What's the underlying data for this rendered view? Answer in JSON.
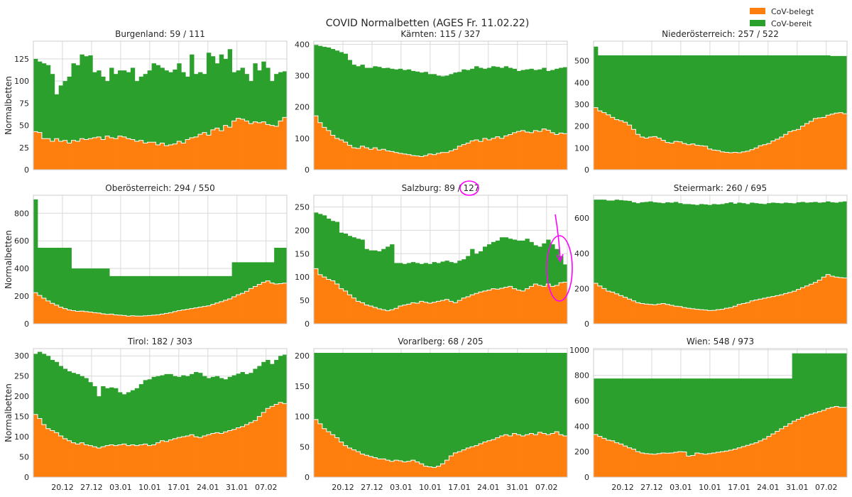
{
  "title": "COVID Normalbetten (AGES Fr. 11.02.22)",
  "legend": {
    "placement": "top-right",
    "items": [
      {
        "label": "CoV-belegt",
        "color": "#ff7f0e"
      },
      {
        "label": "CoV-bereit",
        "color": "#2ca02c"
      }
    ]
  },
  "chart_data": {
    "type": "area",
    "ylabel": "Normalbetten",
    "x_ticks": [
      "20.12",
      "27.12",
      "03.01",
      "10.01",
      "17.01",
      "24.01",
      "31.01",
      "07.02"
    ],
    "x_range": [
      "13.12",
      "11.02"
    ],
    "grid": true,
    "annotations": [
      "127 circled in Salzburg title",
      "arrow and ellipse around latest Salzburg values"
    ],
    "series_names": [
      "CoV-belegt",
      "CoV-bereit"
    ],
    "panels": [
      {
        "title": "Burgenland: 59 / 111",
        "ylim": [
          0,
          145
        ],
        "yticks": [
          0,
          25,
          50,
          75,
          100,
          125
        ],
        "belegt": [
          43,
          42,
          35,
          35,
          32,
          35,
          32,
          33,
          30,
          33,
          32,
          35,
          34,
          35,
          36,
          37,
          34,
          38,
          36,
          35,
          38,
          37,
          35,
          34,
          32,
          33,
          30,
          31,
          31,
          28,
          30,
          27,
          28,
          29,
          32,
          30,
          34,
          36,
          37,
          40,
          42,
          39,
          45,
          47,
          44,
          50,
          48,
          55,
          58,
          57,
          55,
          52,
          54,
          53,
          54,
          51,
          50,
          49,
          55,
          59
        ],
        "bereit": [
          125,
          122,
          120,
          118,
          108,
          85,
          95,
          100,
          105,
          120,
          118,
          130,
          128,
          129,
          110,
          112,
          105,
          100,
          115,
          108,
          112,
          112,
          110,
          115,
          100,
          105,
          108,
          112,
          120,
          118,
          115,
          112,
          110,
          113,
          120,
          110,
          105,
          130,
          108,
          110,
          108,
          132,
          128,
          120,
          130,
          125,
          136,
          110,
          112,
          115,
          108,
          100,
          120,
          112,
          122,
          115,
          100,
          108,
          110,
          111
        ]
      },
      {
        "title": "Kärnten: 115 / 327",
        "ylim": [
          0,
          410
        ],
        "yticks": [
          0,
          100,
          200,
          300,
          400
        ],
        "belegt": [
          172,
          150,
          135,
          125,
          110,
          100,
          95,
          88,
          78,
          70,
          68,
          75,
          70,
          65,
          70,
          63,
          65,
          60,
          58,
          55,
          52,
          50,
          48,
          45,
          44,
          42,
          45,
          50,
          48,
          52,
          55,
          55,
          60,
          65,
          75,
          80,
          85,
          92,
          95,
          90,
          100,
          95,
          100,
          105,
          100,
          108,
          112,
          118,
          122,
          125,
          120,
          118,
          125,
          122,
          130,
          126,
          118,
          112,
          117,
          115
        ],
        "bereit": [
          398,
          395,
          392,
          390,
          385,
          380,
          375,
          370,
          350,
          335,
          330,
          335,
          325,
          325,
          330,
          328,
          324,
          325,
          322,
          320,
          322,
          318,
          320,
          315,
          313,
          310,
          312,
          305,
          305,
          300,
          298,
          300,
          305,
          310,
          312,
          320,
          318,
          322,
          330,
          325,
          322,
          325,
          330,
          328,
          325,
          330,
          325,
          322,
          315,
          318,
          320,
          322,
          318,
          320,
          325,
          315,
          318,
          322,
          325,
          327
        ]
      },
      {
        "title": "Niederösterreich: 257 / 522",
        "ylim": [
          0,
          590
        ],
        "yticks": [
          0,
          100,
          200,
          300,
          400,
          500
        ],
        "belegt": [
          285,
          270,
          262,
          252,
          240,
          230,
          225,
          218,
          205,
          185,
          162,
          150,
          145,
          150,
          152,
          145,
          135,
          125,
          122,
          130,
          128,
          120,
          115,
          118,
          112,
          110,
          108,
          95,
          90,
          88,
          82,
          80,
          78,
          80,
          78,
          82,
          85,
          92,
          100,
          110,
          115,
          120,
          132,
          140,
          150,
          162,
          175,
          180,
          185,
          200,
          212,
          222,
          235,
          238,
          240,
          250,
          255,
          260,
          262,
          257
        ],
        "bereit": [
          565,
          525,
          525,
          525,
          525,
          525,
          525,
          525,
          525,
          525,
          525,
          525,
          525,
          525,
          525,
          525,
          525,
          525,
          525,
          525,
          525,
          525,
          525,
          525,
          525,
          525,
          525,
          525,
          525,
          525,
          525,
          525,
          525,
          525,
          525,
          525,
          525,
          525,
          525,
          525,
          525,
          525,
          525,
          525,
          525,
          525,
          525,
          525,
          525,
          525,
          525,
          525,
          525,
          525,
          525,
          525,
          522,
          522,
          522,
          522
        ]
      },
      {
        "title": "Oberösterreich: 294 / 550",
        "ylim": [
          0,
          930
        ],
        "yticks": [
          0,
          200,
          400,
          600,
          800
        ],
        "belegt": [
          225,
          205,
          185,
          165,
          148,
          135,
          120,
          110,
          100,
          95,
          90,
          92,
          88,
          85,
          80,
          78,
          72,
          68,
          70,
          64,
          62,
          60,
          55,
          58,
          56,
          55,
          58,
          60,
          62,
          65,
          70,
          75,
          80,
          88,
          95,
          100,
          105,
          110,
          115,
          120,
          125,
          130,
          140,
          150,
          160,
          170,
          180,
          195,
          210,
          220,
          235,
          255,
          270,
          285,
          300,
          310,
          295,
          288,
          290,
          294
        ],
        "bereit": [
          900,
          550,
          550,
          550,
          550,
          550,
          550,
          550,
          550,
          400,
          400,
          400,
          400,
          400,
          400,
          400,
          400,
          400,
          345,
          345,
          345,
          345,
          345,
          345,
          345,
          345,
          345,
          345,
          345,
          345,
          345,
          345,
          345,
          345,
          345,
          345,
          345,
          345,
          345,
          345,
          345,
          345,
          345,
          345,
          345,
          345,
          345,
          445,
          445,
          445,
          445,
          445,
          445,
          445,
          445,
          445,
          445,
          550,
          550,
          550
        ]
      },
      {
        "title": "Salzburg: 89 / 127",
        "ylim": [
          0,
          275
        ],
        "yticks": [
          0,
          50,
          100,
          150,
          200,
          250
        ],
        "belegt": [
          118,
          105,
          100,
          95,
          92,
          85,
          75,
          70,
          62,
          55,
          48,
          45,
          40,
          38,
          35,
          32,
          30,
          28,
          30,
          33,
          38,
          40,
          42,
          45,
          44,
          48,
          46,
          44,
          46,
          48,
          50,
          52,
          48,
          45,
          50,
          55,
          58,
          62,
          65,
          68,
          70,
          72,
          75,
          74,
          76,
          78,
          80,
          75,
          72,
          70,
          75,
          80,
          85,
          82,
          80,
          85,
          80,
          82,
          88,
          89
        ],
        "bereit": [
          238,
          235,
          232,
          225,
          220,
          218,
          195,
          193,
          188,
          185,
          182,
          180,
          160,
          157,
          157,
          155,
          160,
          165,
          170,
          130,
          130,
          128,
          130,
          132,
          130,
          128,
          130,
          128,
          132,
          130,
          133,
          135,
          132,
          130,
          135,
          138,
          145,
          160,
          150,
          155,
          165,
          170,
          175,
          178,
          185,
          185,
          182,
          180,
          178,
          178,
          182,
          175,
          168,
          165,
          172,
          180,
          170,
          160,
          145,
          127
        ]
      },
      {
        "title": "Steiermark: 260 / 695",
        "ylim": [
          0,
          730
        ],
        "yticks": [
          0,
          200,
          400,
          600
        ],
        "belegt": [
          230,
          215,
          200,
          185,
          180,
          170,
          160,
          150,
          140,
          130,
          120,
          115,
          112,
          110,
          108,
          112,
          115,
          110,
          105,
          100,
          98,
          92,
          88,
          85,
          82,
          80,
          78,
          75,
          76,
          80,
          82,
          88,
          92,
          100,
          110,
          115,
          120,
          130,
          135,
          140,
          145,
          150,
          155,
          160,
          165,
          172,
          178,
          185,
          195,
          205,
          215,
          225,
          235,
          248,
          265,
          280,
          270,
          265,
          262,
          260
        ],
        "bereit": [
          705,
          705,
          705,
          700,
          700,
          705,
          702,
          700,
          698,
          690,
          685,
          690,
          692,
          695,
          690,
          688,
          685,
          690,
          688,
          692,
          685,
          680,
          680,
          678,
          675,
          680,
          678,
          675,
          680,
          678,
          680,
          685,
          690,
          682,
          688,
          685,
          680,
          688,
          685,
          682,
          680,
          685,
          688,
          686,
          684,
          688,
          686,
          684,
          690,
          692,
          688,
          690,
          692,
          688,
          690,
          695,
          690,
          688,
          692,
          695
        ]
      },
      {
        "title": "Tirol: 182 / 303",
        "ylim": [
          0,
          318
        ],
        "yticks": [
          0,
          50,
          100,
          150,
          200,
          250,
          300
        ],
        "belegt": [
          155,
          145,
          130,
          120,
          115,
          110,
          102,
          95,
          90,
          85,
          82,
          85,
          80,
          78,
          75,
          72,
          75,
          78,
          80,
          78,
          80,
          82,
          78,
          80,
          78,
          80,
          82,
          78,
          80,
          85,
          90,
          88,
          92,
          95,
          98,
          100,
          102,
          105,
          100,
          98,
          102,
          105,
          108,
          110,
          108,
          112,
          115,
          118,
          122,
          125,
          130,
          135,
          140,
          150,
          160,
          170,
          175,
          180,
          185,
          182
        ],
        "bereit": [
          305,
          310,
          305,
          300,
          290,
          285,
          275,
          268,
          262,
          258,
          255,
          250,
          245,
          235,
          225,
          200,
          225,
          220,
          222,
          220,
          210,
          205,
          210,
          215,
          220,
          230,
          240,
          242,
          248,
          250,
          252,
          255,
          255,
          250,
          248,
          252,
          250,
          255,
          260,
          258,
          250,
          245,
          248,
          250,
          245,
          242,
          248,
          252,
          256,
          260,
          255,
          258,
          268,
          275,
          285,
          290,
          280,
          290,
          300,
          303
        ]
      },
      {
        "title": "Vorarlberg: 68 / 205",
        "ylim": [
          0,
          212
        ],
        "yticks": [
          0,
          50,
          100,
          150,
          200
        ],
        "belegt": [
          95,
          88,
          80,
          75,
          70,
          65,
          58,
          52,
          48,
          45,
          42,
          38,
          36,
          34,
          32,
          30,
          30,
          28,
          26,
          28,
          27,
          25,
          26,
          28,
          25,
          22,
          18,
          17,
          16,
          18,
          22,
          28,
          35,
          40,
          42,
          45,
          48,
          50,
          52,
          55,
          58,
          60,
          62,
          65,
          68,
          70,
          68,
          72,
          70,
          68,
          70,
          72,
          70,
          74,
          72,
          70,
          72,
          75,
          70,
          68
        ],
        "bereit": [
          205,
          205,
          205,
          205,
          205,
          205,
          205,
          205,
          205,
          205,
          205,
          205,
          205,
          205,
          205,
          205,
          205,
          205,
          205,
          205,
          205,
          205,
          205,
          205,
          205,
          205,
          205,
          205,
          205,
          205,
          205,
          205,
          205,
          205,
          205,
          205,
          205,
          205,
          205,
          205,
          205,
          205,
          205,
          205,
          205,
          205,
          205,
          205,
          205,
          205,
          205,
          205,
          205,
          205,
          205,
          205,
          205,
          205,
          205,
          205
        ]
      },
      {
        "title": "Wien: 548 / 973",
        "ylim": [
          0,
          1010
        ],
        "yticks": [
          0,
          200,
          400,
          600,
          800,
          1000
        ],
        "belegt": [
          335,
          320,
          305,
          290,
          285,
          270,
          260,
          245,
          230,
          220,
          200,
          190,
          185,
          182,
          180,
          185,
          190,
          188,
          190,
          195,
          200,
          198,
          165,
          170,
          190,
          185,
          180,
          185,
          190,
          195,
          200,
          205,
          212,
          220,
          230,
          240,
          250,
          260,
          270,
          285,
          300,
          320,
          340,
          360,
          380,
          400,
          420,
          440,
          455,
          470,
          485,
          495,
          505,
          515,
          525,
          540,
          548,
          555,
          548,
          548
        ],
        "bereit": [
          775,
          775,
          775,
          775,
          775,
          775,
          775,
          775,
          775,
          775,
          775,
          775,
          775,
          775,
          775,
          775,
          775,
          775,
          775,
          775,
          775,
          775,
          775,
          775,
          775,
          775,
          775,
          775,
          775,
          775,
          775,
          775,
          775,
          775,
          775,
          775,
          775,
          775,
          775,
          775,
          775,
          775,
          775,
          775,
          775,
          775,
          775,
          973,
          973,
          973,
          973,
          973,
          973,
          973,
          973,
          973,
          973,
          973,
          973,
          973
        ]
      }
    ]
  }
}
